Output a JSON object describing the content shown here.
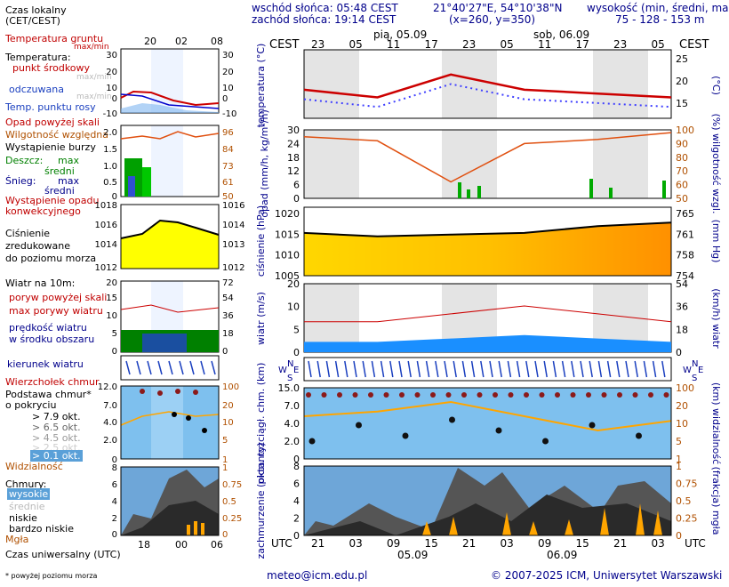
{
  "header": {
    "sunrise": "wschód słońca: 05:48 CEST",
    "sunset": "zachód słońca: 19:14 CEST",
    "coords": "21°40'27\"E, 54°10'38\"N",
    "grid": "(x=260, y=350)",
    "elev_title": "wysokość (min, średni, max)",
    "elev_values": "75 - 128 - 153 m"
  },
  "legend": {
    "time_local": "Czas lokalny\n(CET/CEST)",
    "soil_temp": "Temperatura gruntu",
    "soil_temp_sub": "max/min",
    "temperature": "Temperatura:",
    "temp_mid": "punkt środkowy",
    "temp_mid_sub": "max/min",
    "feels_like": "odczuwana",
    "feels_like_sub": "max/min",
    "dew_point": "Temp. punktu rosy",
    "precip_above": "Opad powyżej skali",
    "humidity": "Wilgotność względna",
    "storm": "Wystąpienie burzy",
    "rain": "Deszcz:",
    "rain_max": "max",
    "rain_avg": "średni",
    "snow": "Śnieg:",
    "snow_max": "max",
    "snow_avg": "średni",
    "conv": "Wystąpienie opadu\nkonwekcyjnego",
    "pressure": "Ciśnienie\nzredukowane\ndo poziomu morza",
    "wind10": "Wiatr na 10m:",
    "gust_above": "poryw powyżej skali",
    "gust_max": "max porywy wiatru",
    "wind_speed": "prędkość wiatru\nw środku obszaru",
    "wind_dir": "kierunek wiatru",
    "cloud_top": "Wierzchołek chmur",
    "cloud_base": "Podstawa chmur*\no pokryciu",
    "okt79": "> 7.9 okt.",
    "okt65": "> 6.5 okt.",
    "okt45": "> 4.5 okt.",
    "okt25": "> 2.5 okt.",
    "okt01": "> 0.1 okt.",
    "visibility": "Widzialność",
    "clouds": "Chmury:",
    "cl_high": "wysokie",
    "cl_mid": "średnie",
    "cl_low": "niskie",
    "cl_vlow": "bardzo niskie",
    "fog": "Mgła",
    "utc_time": "Czas uniwersalny (UTC)",
    "footnote": "* powyżej poziomu morza"
  },
  "left_axes": {
    "top_ticks": [
      "20",
      "02",
      "08"
    ],
    "bottom_ticks": [
      "18",
      "00",
      "06"
    ],
    "temp_ticks": [
      "30",
      "20",
      "10",
      "0",
      "-10"
    ],
    "temp_right": [
      "30",
      "20",
      "10",
      "0",
      "-10"
    ],
    "precip_ticks": [
      "2.0",
      "1.5",
      "1.0",
      "0.5",
      "0"
    ],
    "hum_right": [
      "96",
      "84",
      "73",
      "61",
      "50"
    ],
    "press_ticks": [
      "1018",
      "1016",
      "1014",
      "1012"
    ],
    "press_right": [
      "1016",
      "1014",
      "1013",
      "1012"
    ],
    "wind_ticks": [
      "20",
      "15",
      "10",
      "5",
      "0"
    ],
    "wind_right": [
      "72",
      "54",
      "36",
      "18",
      "0"
    ],
    "cb_ticks": [
      "12.0",
      "7.0",
      "4.0",
      "2.0",
      "0"
    ],
    "vis_right": [
      "100",
      "20",
      "10",
      "5",
      "1"
    ],
    "cloud_ticks": [
      "8",
      "6",
      "4",
      "2",
      "0"
    ],
    "fog_right": [
      "1",
      "0.75",
      "0.5",
      "0.25",
      "0"
    ]
  },
  "main_axes": {
    "cest": "CEST",
    "utc": "UTC",
    "date1": "pią, 05.09",
    "date2": "sob, 06.09",
    "date1_bottom": "05.09",
    "date2_bottom": "06.09",
    "top_hours": [
      "23",
      "05",
      "11",
      "17",
      "23",
      "05",
      "11",
      "17",
      "23",
      "05"
    ],
    "bottom_hours": [
      "21",
      "03",
      "09",
      "15",
      "21",
      "03",
      "09",
      "15",
      "21",
      "03"
    ],
    "temp_ticks": [
      "25",
      "20",
      "15"
    ],
    "precip_ticks": [
      "30",
      "24",
      "18",
      "12",
      "6",
      "0"
    ],
    "hum_ticks": [
      "100",
      "90",
      "80",
      "70",
      "60",
      "50"
    ],
    "press_ticks": [
      "1020",
      "1015",
      "1010",
      "1005"
    ],
    "press_mmhg": [
      "765",
      "761",
      "758",
      "754"
    ],
    "wind_ticks": [
      "20",
      "10",
      "5",
      "0"
    ],
    "wind_kmh": [
      "54",
      "36",
      "18",
      "0"
    ],
    "cb_ticks": [
      "15.0",
      "7.0",
      "4.0",
      "2.0",
      "0"
    ],
    "vis_ticks": [
      "100",
      "20",
      "10",
      "5",
      "1"
    ],
    "cloud_ticks": [
      "8",
      "6",
      "4",
      "2",
      "0"
    ],
    "fog_ticks": [
      "1",
      "0.75",
      "0.5",
      "0.25",
      "0"
    ]
  },
  "panel_labels": {
    "temp": "temperatura\n(°C)",
    "temp_r": "(°C)",
    "precip": "opad\n(mm/h, kg/m²/h)",
    "hum_r": "(%)\nwilgotność wzgl.",
    "press": "ciśnienie\n(hPa)",
    "press_r": "(mm Hg)",
    "wind": "wiatr\n(m/s)",
    "wind_r": "(km/h)\nwiatr",
    "cb": "pion. rozciągł. chm.\n(km)",
    "vis_r": "(km)\nwidzialność",
    "cloud": "zachmurzenie\n(oktanty)",
    "fog_r": "(frakcja)\nmgła",
    "compass_n": "N",
    "compass_w": "W",
    "compass_e": "E",
    "compass_s": "S"
  },
  "footer": {
    "email": "meteo@icm.edu.pl",
    "copyright": "© 2007-2025 ICM, Uniwersytet Warszawski"
  },
  "colors": {
    "temp": "#cc0000",
    "dew": "#4040ff",
    "humidity": "#e05010",
    "rain": "#00aa00",
    "pressure_fill": "#ffd700",
    "wind_fill": "#1a8fff",
    "cloud_sky": "#7ec0ee",
    "fog": "#ffa500",
    "axis_text": "#00008b",
    "right_text": "#b05000"
  },
  "chart_data": [
    {
      "type": "line",
      "title": "temperatura",
      "ylabel": "°C",
      "x": [
        "05.09 21",
        "06.09 03",
        "06.09 09",
        "06.09 15",
        "06.09 21",
        "07.09 03"
      ],
      "series": [
        {
          "values": [
            19.5,
            17.5,
            23.5,
            19.5,
            18.5,
            17.5
          ]
        }
      ],
      "ylim": [
        12,
        30
      ]
    },
    {
      "type": "line",
      "title": "wilgotność wzgl.",
      "ylabel": "%",
      "x": [
        "05.09 21",
        "06.09 03",
        "06.09 09",
        "06.09 15",
        "06.09 21",
        "07.09 03"
      ],
      "series": [
        {
          "values": [
            95,
            92,
            62,
            90,
            93,
            98
          ]
        }
      ],
      "ylim": [
        50,
        100
      ]
    },
    {
      "type": "area",
      "title": "ciśnienie",
      "ylabel": "hPa",
      "x": [
        "05.09 21",
        "06.09 03",
        "06.09 09",
        "06.09 15",
        "06.09 21",
        "07.09 03"
      ],
      "series": [
        {
          "values": [
            1017.5,
            1016.5,
            1017.0,
            1017.5,
            1019.5,
            1020.5
          ]
        }
      ],
      "ylim": [
        1005,
        1025
      ]
    },
    {
      "type": "area",
      "title": "wiatr",
      "ylabel": "m/s",
      "x": [
        "05.09 21",
        "06.09 03",
        "06.09 09",
        "06.09 15",
        "06.09 21",
        "07.09 03"
      ],
      "series": [
        {
          "values": [
            3,
            3,
            4,
            5,
            4,
            3
          ]
        }
      ],
      "ylim": [
        0,
        20
      ]
    }
  ]
}
